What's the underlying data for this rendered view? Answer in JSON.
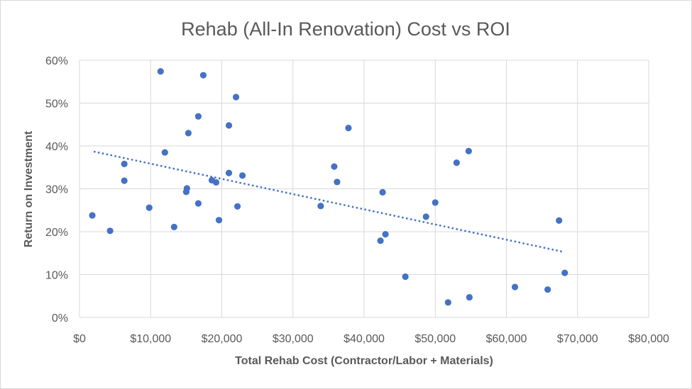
{
  "chart_data": {
    "type": "scatter",
    "title": "Rehab (All-In Renovation) Cost vs ROI",
    "xlabel": "Total Rehab Cost (Contractor/Labor  + Materials)",
    "ylabel": "Return on Investment",
    "xlim": [
      0,
      80000
    ],
    "ylim": [
      0,
      0.6
    ],
    "x_ticks": [
      0,
      10000,
      20000,
      30000,
      40000,
      50000,
      60000,
      70000,
      80000
    ],
    "x_tick_labels": [
      "$0",
      "$10,000",
      "$20,000",
      "$30,000",
      "$40,000",
      "$50,000",
      "$60,000",
      "$70,000",
      "$80,000"
    ],
    "y_ticks": [
      0,
      0.1,
      0.2,
      0.3,
      0.4,
      0.5,
      0.6
    ],
    "y_tick_labels": [
      "0%",
      "10%",
      "20%",
      "30%",
      "40%",
      "50%",
      "60%"
    ],
    "grid": true,
    "legend": "none",
    "marker_color": "#4472c4",
    "trendline": {
      "type": "linear",
      "style": "dotted",
      "color": "#4472c4",
      "x": [
        2000,
        68000
      ],
      "y": [
        0.387,
        0.153
      ]
    },
    "points": [
      {
        "x": 1800,
        "y": 0.238
      },
      {
        "x": 4300,
        "y": 0.202
      },
      {
        "x": 6300,
        "y": 0.358
      },
      {
        "x": 6300,
        "y": 0.319
      },
      {
        "x": 9800,
        "y": 0.256
      },
      {
        "x": 11400,
        "y": 0.574
      },
      {
        "x": 12000,
        "y": 0.385
      },
      {
        "x": 13300,
        "y": 0.211
      },
      {
        "x": 15000,
        "y": 0.293
      },
      {
        "x": 15100,
        "y": 0.301
      },
      {
        "x": 15300,
        "y": 0.43
      },
      {
        "x": 16700,
        "y": 0.469
      },
      {
        "x": 16700,
        "y": 0.266
      },
      {
        "x": 17400,
        "y": 0.565
      },
      {
        "x": 18600,
        "y": 0.32
      },
      {
        "x": 19200,
        "y": 0.315
      },
      {
        "x": 19600,
        "y": 0.227
      },
      {
        "x": 21000,
        "y": 0.337
      },
      {
        "x": 21000,
        "y": 0.448
      },
      {
        "x": 22000,
        "y": 0.514
      },
      {
        "x": 22200,
        "y": 0.259
      },
      {
        "x": 22900,
        "y": 0.331
      },
      {
        "x": 33900,
        "y": 0.26
      },
      {
        "x": 35800,
        "y": 0.352
      },
      {
        "x": 36200,
        "y": 0.316
      },
      {
        "x": 37800,
        "y": 0.442
      },
      {
        "x": 42300,
        "y": 0.179
      },
      {
        "x": 42600,
        "y": 0.292
      },
      {
        "x": 43000,
        "y": 0.194
      },
      {
        "x": 45800,
        "y": 0.095
      },
      {
        "x": 48700,
        "y": 0.235
      },
      {
        "x": 50000,
        "y": 0.268
      },
      {
        "x": 51800,
        "y": 0.035
      },
      {
        "x": 53000,
        "y": 0.361
      },
      {
        "x": 54700,
        "y": 0.388
      },
      {
        "x": 54800,
        "y": 0.047
      },
      {
        "x": 61200,
        "y": 0.071
      },
      {
        "x": 65800,
        "y": 0.065
      },
      {
        "x": 67400,
        "y": 0.226
      },
      {
        "x": 68200,
        "y": 0.104
      }
    ]
  }
}
